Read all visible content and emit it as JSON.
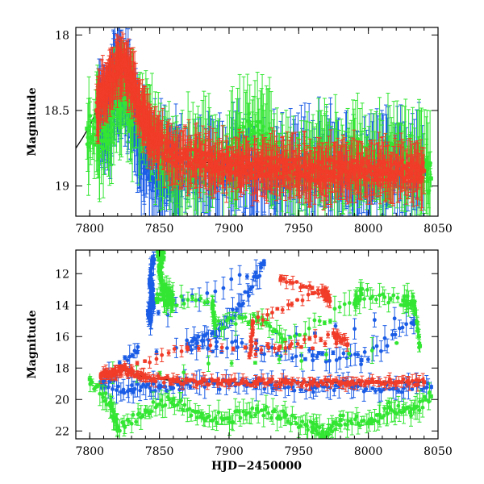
{
  "chart_data": [
    {
      "type": "scatter",
      "panel": "top",
      "title": "",
      "xlabel": "",
      "ylabel": "Magnitude",
      "xlim": [
        7790,
        8050
      ],
      "ylim": [
        19.2,
        17.95
      ],
      "y_inverted": true,
      "grid": false,
      "legend": "none",
      "x_ticks": [
        "7800",
        "7850",
        "7900",
        "7950",
        "8000",
        "8050"
      ],
      "y_ticks": [
        "18",
        "18.5",
        "19"
      ],
      "series": [
        {
          "color": "#1a5ce6",
          "points": [
            [
              7806,
              18.52
            ],
            [
              7812,
              18.6
            ],
            [
              7818,
              18.35
            ],
            [
              7822,
              18.3
            ],
            [
              7828,
              18.42
            ],
            [
              7835,
              18.7
            ],
            [
              7842,
              18.85
            ],
            [
              7850,
              18.9
            ],
            [
              7860,
              18.95
            ],
            [
              7875,
              18.88
            ],
            [
              7890,
              18.9
            ],
            [
              7905,
              18.85
            ],
            [
              7920,
              18.95
            ],
            [
              7935,
              18.9
            ],
            [
              7950,
              18.92
            ],
            [
              7965,
              18.88
            ],
            [
              7980,
              18.9
            ],
            [
              7995,
              18.92
            ],
            [
              8010,
              18.88
            ],
            [
              8025,
              18.9
            ],
            [
              8040,
              18.92
            ]
          ]
        },
        {
          "color": "#33e633",
          "points": [
            [
              7798,
              18.62
            ],
            [
              7810,
              18.7
            ],
            [
              7820,
              18.4
            ],
            [
              7830,
              18.5
            ],
            [
              7845,
              18.65
            ],
            [
              7860,
              18.9
            ],
            [
              7880,
              18.8
            ],
            [
              7900,
              18.85
            ],
            [
              7915,
              18.6
            ],
            [
              7930,
              18.75
            ],
            [
              7945,
              18.9
            ],
            [
              7960,
              18.8
            ],
            [
              7975,
              18.85
            ],
            [
              7990,
              18.78
            ],
            [
              8005,
              18.9
            ],
            [
              8020,
              18.8
            ],
            [
              8035,
              18.85
            ],
            [
              8045,
              18.95
            ]
          ]
        },
        {
          "color": "#f03c28",
          "points": [
            [
              7805,
              18.5
            ],
            [
              7810,
              18.38
            ],
            [
              7815,
              18.3
            ],
            [
              7820,
              18.22
            ],
            [
              7825,
              18.2
            ],
            [
              7830,
              18.3
            ],
            [
              7835,
              18.45
            ],
            [
              7840,
              18.6
            ],
            [
              7845,
              18.68
            ],
            [
              7850,
              18.72
            ],
            [
              7860,
              18.8
            ],
            [
              7870,
              18.82
            ],
            [
              7880,
              18.84
            ],
            [
              7890,
              18.85
            ],
            [
              7900,
              18.86
            ],
            [
              7910,
              18.87
            ],
            [
              7920,
              18.88
            ],
            [
              7930,
              18.88
            ],
            [
              7940,
              18.89
            ],
            [
              7950,
              18.89
            ],
            [
              7960,
              18.9
            ],
            [
              7970,
              18.9
            ],
            [
              7980,
              18.9
            ],
            [
              7990,
              18.9
            ],
            [
              8000,
              18.9
            ],
            [
              8010,
              18.9
            ],
            [
              8020,
              18.9
            ],
            [
              8030,
              18.9
            ],
            [
              8040,
              18.9
            ]
          ]
        }
      ]
    },
    {
      "type": "scatter",
      "panel": "bottom",
      "title": "",
      "xlabel": "HJD−2450000",
      "ylabel": "Magnitude",
      "xlim": [
        7790,
        8050
      ],
      "ylim": [
        22.5,
        10.5
      ],
      "y_inverted": true,
      "grid": false,
      "legend": "none",
      "x_ticks": [
        "7800",
        "7850",
        "7900",
        "7950",
        "8000",
        "8050"
      ],
      "y_ticks": [
        "12",
        "14",
        "16",
        "18",
        "20",
        "22"
      ],
      "series": [
        {
          "color": "#1a5ce6",
          "points": [
            [
              7846,
              11.1
            ],
            [
              7843,
              12.5
            ],
            [
              7845,
              12.7
            ],
            [
              7844,
              13.5
            ],
            [
              7846,
              13.8
            ],
            [
              7842,
              14.6
            ],
            [
              7844,
              14.8
            ],
            [
              7925,
              11.4
            ],
            [
              7908,
              14.0
            ],
            [
              7890,
              15.8
            ],
            [
              7870,
              16.5
            ],
            [
              7920,
              16.8
            ],
            [
              7960,
              17.2
            ],
            [
              7995,
              17.5
            ],
            [
              8033,
              15.0
            ],
            [
              7834,
              17.0
            ],
            [
              7808,
              18.9
            ],
            [
              7830,
              19.4
            ],
            [
              7850,
              19.2
            ],
            [
              7870,
              19.0
            ],
            [
              7900,
              19.1
            ],
            [
              7930,
              19.0
            ],
            [
              7960,
              19.2
            ],
            [
              7990,
              19.1
            ],
            [
              8020,
              19.3
            ],
            [
              8045,
              19.2
            ]
          ]
        },
        {
          "color": "#33e633",
          "points": [
            [
              7849,
              10.9
            ],
            [
              7853,
              11.0
            ],
            [
              7850,
              11.7
            ],
            [
              7852,
              12.8
            ],
            [
              7856,
              13.2
            ],
            [
              7860,
              13.7
            ],
            [
              7848,
              13.6
            ],
            [
              7888,
              13.9
            ],
            [
              7890,
              15.3
            ],
            [
              7920,
              14.8
            ],
            [
              7940,
              16.2
            ],
            [
              7990,
              13.9
            ],
            [
              7995,
              13.3
            ],
            [
              8025,
              13.7
            ],
            [
              8033,
              13.8
            ],
            [
              8037,
              16.6
            ],
            [
              7800,
              18.7
            ],
            [
              7815,
              20.3
            ],
            [
              7820,
              21.8
            ],
            [
              7840,
              20.7
            ],
            [
              7860,
              20.0
            ],
            [
              7880,
              21.1
            ],
            [
              7900,
              21.2
            ],
            [
              7920,
              20.6
            ],
            [
              7940,
              21.1
            ],
            [
              7960,
              21.8
            ],
            [
              7970,
              22.2
            ],
            [
              7980,
              21.3
            ],
            [
              8000,
              21.5
            ],
            [
              8015,
              20.5
            ],
            [
              8030,
              20.8
            ],
            [
              8045,
              19.8
            ]
          ]
        },
        {
          "color": "#f03c28",
          "points": [
            [
              7937,
              12.4
            ],
            [
              7969,
              13.3
            ],
            [
              7972,
              13.6
            ],
            [
              7967,
              13.1
            ],
            [
              7917,
              15.1
            ],
            [
              7915,
              17.1
            ],
            [
              7975,
              15.8
            ],
            [
              7985,
              16.5
            ],
            [
              7870,
              16.7
            ],
            [
              7808,
              18.5
            ],
            [
              7815,
              18.3
            ],
            [
              7822,
              18.1
            ],
            [
              7830,
              18.3
            ],
            [
              7840,
              18.6
            ],
            [
              7860,
              18.8
            ],
            [
              7880,
              18.9
            ],
            [
              7900,
              18.9
            ],
            [
              7920,
              18.9
            ],
            [
              7940,
              18.9
            ],
            [
              7960,
              18.9
            ],
            [
              7980,
              18.9
            ],
            [
              8000,
              18.9
            ],
            [
              8020,
              18.9
            ],
            [
              8040,
              18.9
            ]
          ]
        }
      ]
    }
  ]
}
